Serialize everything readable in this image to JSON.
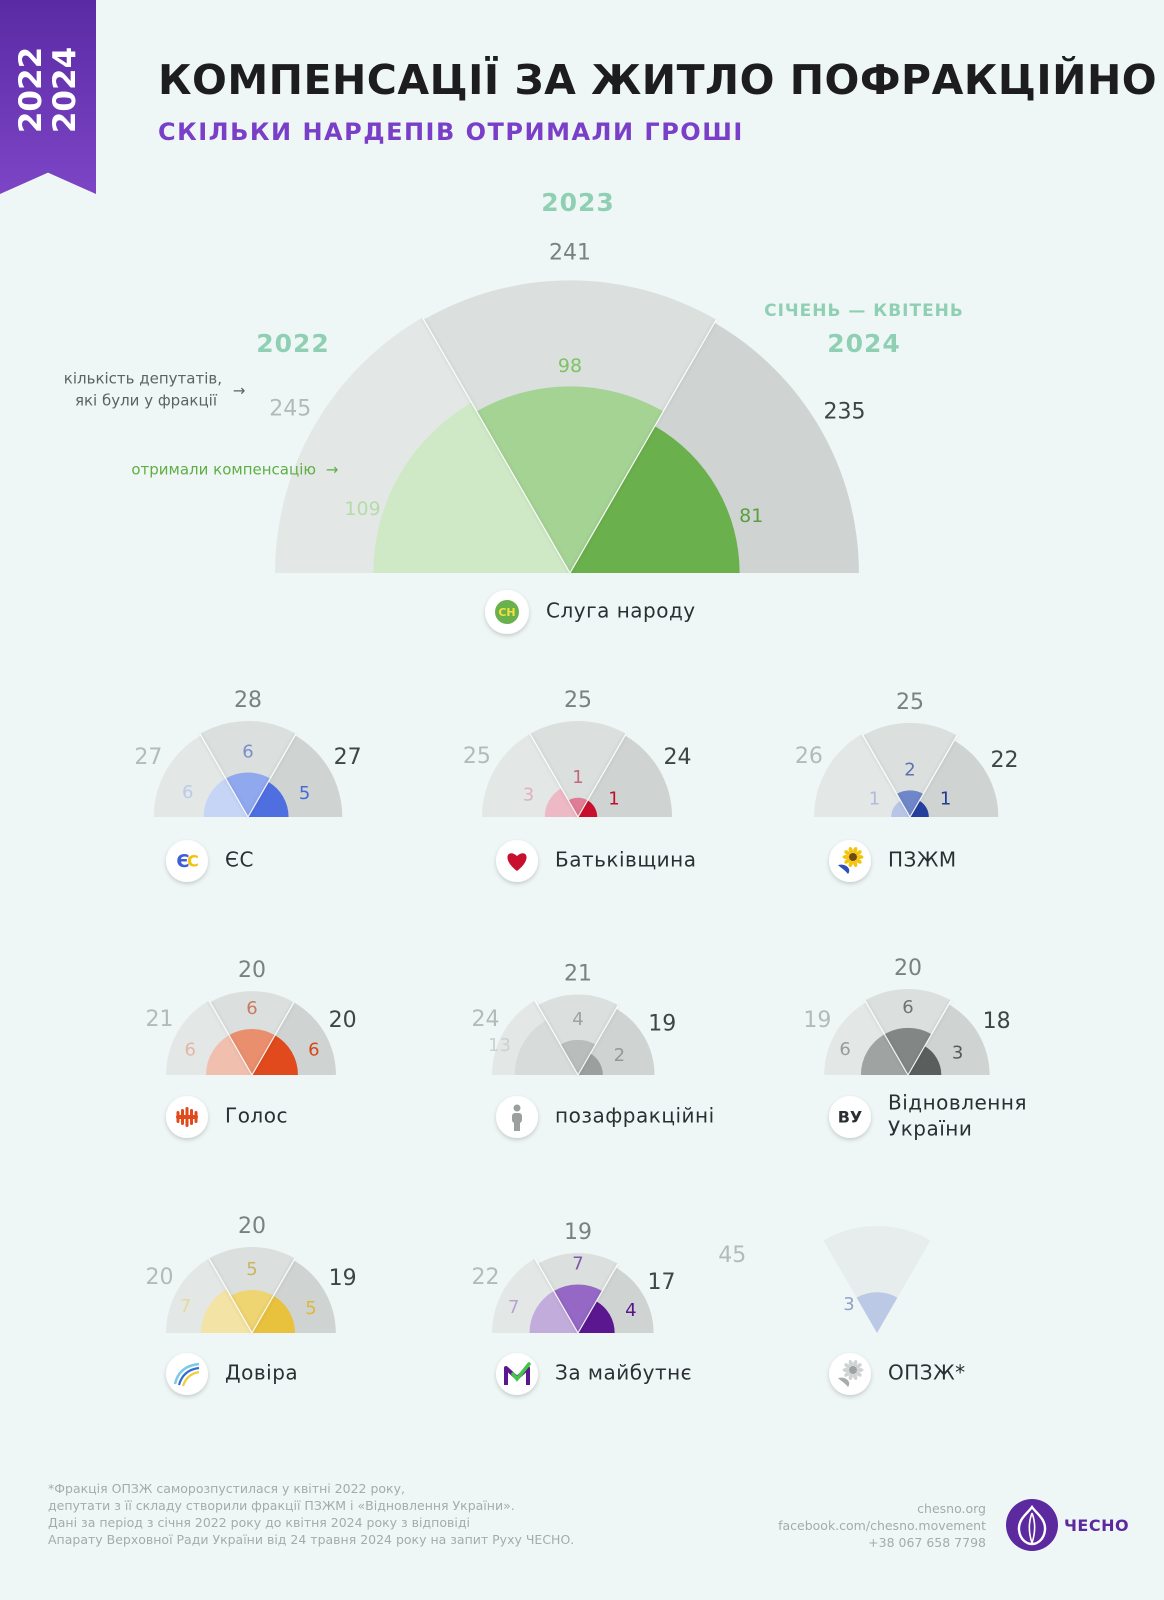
{
  "ribbon": {
    "year_top": "2022",
    "year_bottom": "2024"
  },
  "header": {
    "title": "КОМПЕНСАЦІЇ ЗА ЖИТЛО ПОФРАКЦІЙНО",
    "subtitle": "СКІЛЬКИ НАРДЕПІВ ОТРИМАЛИ ГРОШІ"
  },
  "main_labels": {
    "year_2022": "2022",
    "year_2023": "2023",
    "period_2024": "СІЧЕНЬ — КВІТЕНЬ",
    "year_2024": "2024",
    "legend_members_line1": "кількість депутатів,",
    "legend_members_line2": "які були у фракції",
    "legend_received": "отримали компенсацію",
    "arrow": "→"
  },
  "colors": {
    "bg": "#eff7f6",
    "gray_2022": "#e3e8e7",
    "gray_2023": "#dbe0df",
    "gray_2024": "#cfd4d3",
    "accent_green_label": "#8fd0b4",
    "purple": "#7a3fc8"
  },
  "chart_data": {
    "type": "polar-area",
    "title": "КОМПЕНСАЦІЇ ЗА ЖИТЛО ПОФРАКЦІЙНО",
    "subtitle": "СКІЛЬКИ НАРДЕПІВ ОТРИМАЛИ ГРОШІ",
    "periods": [
      "2022",
      "2023",
      "2024"
    ],
    "factions": [
      {
        "name": "Слуга народу",
        "icon": "servant-of-the-people-icon",
        "members": [
          245,
          241,
          235
        ],
        "received": [
          109,
          98,
          81
        ],
        "colors": [
          "#cfe9c6",
          "#a5d394",
          "#6ab04c"
        ]
      },
      {
        "name": "ЄС",
        "icon": "eurosolidarity-icon",
        "members": [
          27,
          28,
          27
        ],
        "received": [
          6,
          6,
          5
        ],
        "colors": [
          "#c6d4f6",
          "#90a8ee",
          "#4f6fe0"
        ]
      },
      {
        "name": "Батьківщина",
        "icon": "heart-icon",
        "members": [
          25,
          25,
          24
        ],
        "received": [
          3,
          1,
          1
        ],
        "colors": [
          "#ecb9c5",
          "#e07c94",
          "#c8102e"
        ]
      },
      {
        "name": "ПЗЖМ",
        "icon": "sunflower-icon",
        "members": [
          26,
          25,
          22
        ],
        "received": [
          1,
          2,
          1
        ],
        "colors": [
          "#b8c5e6",
          "#6f86c9",
          "#243f9c"
        ]
      },
      {
        "name": "Голос",
        "icon": "golos-icon",
        "members": [
          21,
          20,
          20
        ],
        "received": [
          6,
          6,
          6
        ],
        "colors": [
          "#f1bfae",
          "#ea8f6e",
          "#e04a1c"
        ]
      },
      {
        "name": "позафракційні",
        "icon": "person-icon",
        "members": [
          24,
          21,
          19
        ],
        "received": [
          13,
          4,
          2
        ],
        "colors": [
          "#d7dcdb",
          "#b9bebd",
          "#9ba09f"
        ]
      },
      {
        "name": "Відновлення України",
        "icon": "vu-logo-icon",
        "members": [
          19,
          20,
          18
        ],
        "received": [
          6,
          6,
          3
        ],
        "colors": [
          "#9fa4a3",
          "#828786",
          "#5a5f5e"
        ]
      },
      {
        "name": "Довіра",
        "icon": "dovira-icon",
        "members": [
          20,
          20,
          19
        ],
        "received": [
          7,
          5,
          5
        ],
        "colors": [
          "#f3e3a4",
          "#efd472",
          "#e8c23c"
        ]
      },
      {
        "name": "За майбутнє",
        "icon": "za-maibutnie-icon",
        "members": [
          22,
          19,
          17
        ],
        "received": [
          7,
          7,
          4
        ],
        "colors": [
          "#c2acdb",
          "#9468c4",
          "#5a1790"
        ]
      },
      {
        "name": "ОПЗЖ*",
        "icon": "opzzh-icon",
        "members": [
          45
        ],
        "received": [
          3
        ],
        "colors": [
          "#bcc9e6"
        ]
      }
    ]
  },
  "footer": {
    "note_lines": [
      "*Фракція ОПЗЖ саморозпустилася у квітні 2022 року,",
      "депутати з її складу створили фракції ПЗЖМ і «Відновлення України».",
      "Дані за період з січня 2022 року до квітня 2024 року з відповіді",
      "Апарату Верховної Ради України від 24 травня 2024 року на запит Руху ЧЕСНО."
    ],
    "contact_site": "chesno.org",
    "contact_fb": "facebook.com/chesno.movement",
    "contact_phone": "+38 067 658 7798",
    "logo_text": "ЧЕСНО"
  }
}
